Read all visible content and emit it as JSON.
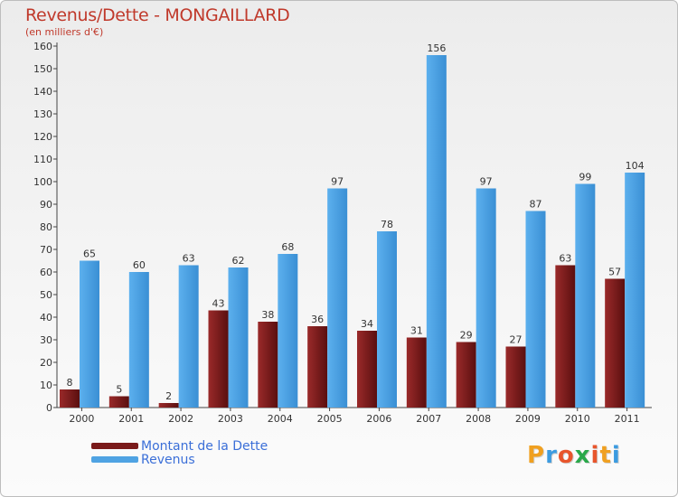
{
  "title": "Revenus/Dette - MONGAILLARD",
  "subtitle": "(en milliers d'€)",
  "brand": "Proxiti",
  "colors": {
    "dette": "#7a1a1a",
    "revenus": "#4fa3e3",
    "title": "#c0392b",
    "legend_text": "#3b6fd8"
  },
  "legend": [
    {
      "label": "Montant de la Dette"
    },
    {
      "label": "Revenus"
    }
  ],
  "chart_data": {
    "type": "bar",
    "categories": [
      "2000",
      "2001",
      "2002",
      "2003",
      "2004",
      "2005",
      "2006",
      "2007",
      "2008",
      "2009",
      "2010",
      "2011"
    ],
    "series": [
      {
        "name": "Montant de la Dette",
        "values": [
          8,
          5,
          2,
          43,
          38,
          36,
          34,
          31,
          29,
          27,
          63,
          57
        ]
      },
      {
        "name": "Revenus",
        "values": [
          65,
          60,
          63,
          62,
          68,
          97,
          78,
          156,
          97,
          87,
          99,
          104
        ]
      }
    ],
    "ylim": [
      0,
      160
    ],
    "yticks": [
      0,
      10,
      20,
      30,
      40,
      50,
      60,
      70,
      80,
      90,
      100,
      110,
      120,
      130,
      140,
      150,
      160
    ],
    "grid": false,
    "legend_position": "bottom-left"
  }
}
